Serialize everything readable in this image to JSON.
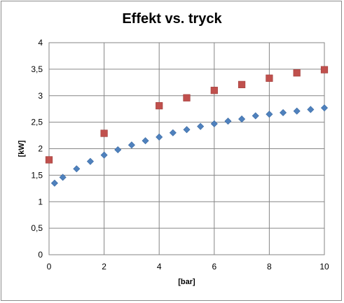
{
  "chart_data": {
    "type": "scatter",
    "title": "Effekt vs. tryck",
    "xlabel": "[bar]",
    "ylabel": "[kW]",
    "xlim": [
      0,
      10
    ],
    "ylim": [
      0,
      4
    ],
    "x_ticks": [
      "0",
      "2",
      "4",
      "6",
      "8",
      "10"
    ],
    "y_ticks": [
      "0",
      "0,5",
      "1",
      "1,5",
      "2",
      "2,5",
      "3",
      "3,5",
      "4"
    ],
    "grid": true,
    "legend": "none",
    "series": [
      {
        "marker": "diamond",
        "color": "#4f81bd",
        "x": [
          0.2,
          0.5,
          1.0,
          1.5,
          2.0,
          2.5,
          3.0,
          3.5,
          4.0,
          4.5,
          5.0,
          5.5,
          6.0,
          6.5,
          7.0,
          7.5,
          8.0,
          8.5,
          9.0,
          9.5,
          10.0
        ],
        "y": [
          1.35,
          1.46,
          1.62,
          1.76,
          1.88,
          1.98,
          2.07,
          2.15,
          2.22,
          2.3,
          2.36,
          2.42,
          2.47,
          2.52,
          2.56,
          2.62,
          2.65,
          2.68,
          2.71,
          2.74,
          2.77
        ]
      },
      {
        "marker": "square",
        "color": "#c0504d",
        "x": [
          0,
          2,
          4,
          5,
          6,
          7,
          8,
          9,
          10
        ],
        "y": [
          1.79,
          2.29,
          2.81,
          2.96,
          3.1,
          3.21,
          3.33,
          3.43,
          3.49
        ]
      }
    ]
  }
}
